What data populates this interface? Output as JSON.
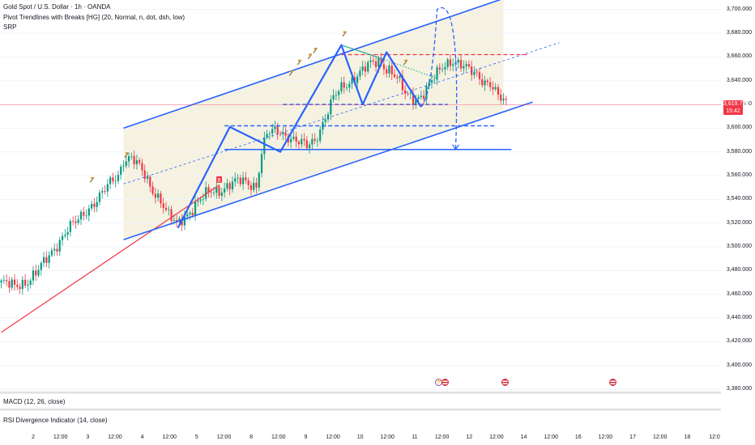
{
  "legend": {
    "symbol": "Gold Spot / U.S. Dollar · 1h · OANDA",
    "indicator1": "Pivot Trendlines with Breaks [HG] (20, Normal, n, dot, dsh, low)",
    "indicator2": "SRP"
  },
  "panes": {
    "macd_label": "MACD (12, 26, close)",
    "rsi_label": "RSI Divergence Indicator (14, close)"
  },
  "last_price": {
    "value": "3,619.720",
    "countdown": "15:42",
    "price": 3619.72
  },
  "colors": {
    "up": "#089981",
    "down": "#f23645",
    "pattern": "#2962ff",
    "support": "#f23645",
    "channel_fill": "#f3f0dc"
  },
  "chart_data": {
    "type": "candlestick",
    "price_axis_ticks": [
      "3,700.000",
      "3,680.000",
      "3,660.000",
      "3,640.000",
      "3,620.000",
      "3,600.000",
      "3,580.000",
      "3,560.000",
      "3,540.000",
      "3,520.000",
      "3,500.000",
      "3,480.000",
      "3,460.000",
      "3,440.000",
      "3,420.000",
      "3,400.000",
      "3,380.000"
    ],
    "price_axis_values": [
      3700,
      3680,
      3660,
      3640,
      3620,
      3600,
      3580,
      3560,
      3540,
      3520,
      3500,
      3480,
      3460,
      3440,
      3420,
      3400,
      3380
    ],
    "ylim": [
      3378,
      3708
    ],
    "time_axis_labels": [
      "2",
      "12:00",
      "3",
      "12:00",
      "4",
      "12:00",
      "5",
      "12:00",
      "8",
      "12:00",
      "9",
      "12:00",
      "10",
      "12:00",
      "11",
      "12:00",
      "12",
      "12:00",
      "14",
      "12:00",
      "16",
      "12:00",
      "17",
      "12:00",
      "18",
      "12:0"
    ],
    "bar_count": 165,
    "close_path": [
      [
        0,
        3470
      ],
      [
        5,
        3466
      ],
      [
        10,
        3472
      ],
      [
        14,
        3480
      ],
      [
        18,
        3492
      ],
      [
        22,
        3506
      ],
      [
        25,
        3515
      ],
      [
        29,
        3522
      ],
      [
        34,
        3536
      ],
      [
        38,
        3545
      ],
      [
        41,
        3553
      ],
      [
        44,
        3560
      ],
      [
        46,
        3574
      ],
      [
        49,
        3576
      ],
      [
        53,
        3563
      ],
      [
        56,
        3551
      ],
      [
        60,
        3540
      ],
      [
        63,
        3526
      ],
      [
        66,
        3518
      ],
      [
        70,
        3528
      ],
      [
        74,
        3538
      ],
      [
        78,
        3545
      ],
      [
        82,
        3548
      ],
      [
        86,
        3553
      ],
      [
        90,
        3555
      ],
      [
        94,
        3553
      ],
      [
        96,
        3552
      ],
      [
        98,
        3580
      ],
      [
        100,
        3595
      ],
      [
        104,
        3597
      ],
      [
        108,
        3594
      ],
      [
        112,
        3588
      ],
      [
        115,
        3584
      ],
      [
        118,
        3590
      ],
      [
        122,
        3610
      ],
      [
        125,
        3625
      ],
      [
        128,
        3633
      ],
      [
        131,
        3639
      ],
      [
        134,
        3646
      ],
      [
        138,
        3652
      ],
      [
        142,
        3656
      ],
      [
        146,
        3650
      ],
      [
        149,
        3642
      ],
      [
        152,
        3628
      ],
      [
        155,
        3625
      ],
      [
        158,
        3628
      ],
      [
        161,
        3636
      ],
      [
        164,
        3645
      ],
      [
        167,
        3654
      ],
      [
        170,
        3658
      ],
      [
        173,
        3653
      ],
      [
        176,
        3648
      ],
      [
        179,
        3645
      ],
      [
        182,
        3640
      ],
      [
        184,
        3638
      ],
      [
        187,
        3626
      ],
      [
        190,
        3620
      ]
    ],
    "pattern_line": [
      [
        66.5,
        3516
      ],
      [
        86,
        3601
      ],
      [
        105,
        3580
      ],
      [
        128,
        3670
      ],
      [
        136,
        3620
      ],
      [
        145,
        3664
      ],
      [
        158,
        3618
      ]
    ],
    "projection": [
      [
        158,
        3618
      ],
      [
        164,
        3700
      ],
      [
        171,
        3582
      ]
    ],
    "channel_upper": [
      [
        46,
        3600
      ],
      [
        190,
        3710
      ]
    ],
    "channel_lower": [
      [
        46,
        3506
      ],
      [
        200,
        3622
      ]
    ],
    "channel_mid": [
      [
        46,
        3553
      ],
      [
        210,
        3672
      ]
    ],
    "support_trendline": [
      [
        0,
        3428
      ],
      [
        82,
        3552
      ]
    ],
    "resistance_line": {
      "price": 3662,
      "from": 128,
      "to": 198
    },
    "neckline_levels": [
      {
        "price": 3620,
        "from": 106,
        "to": 168,
        "style": "dashed"
      },
      {
        "price": 3602,
        "from": 84,
        "to": 186,
        "style": "dashed"
      },
      {
        "price": 3582,
        "from": 84,
        "to": 192,
        "style": "solid"
      }
    ],
    "green_line": [
      [
        128,
        3670
      ],
      [
        144,
        3658
      ]
    ],
    "green_dotted": [
      [
        144,
        3658
      ],
      [
        164,
        3642
      ]
    ],
    "pivot_markers": [
      [
        47,
        3577
      ],
      [
        34,
        3556
      ],
      [
        109,
        3646
      ],
      [
        112,
        3655
      ],
      [
        116,
        3660
      ],
      [
        118,
        3665
      ],
      [
        129,
        3679
      ],
      [
        152,
        3655
      ]
    ],
    "grid": true,
    "legend_position": "top-left"
  }
}
